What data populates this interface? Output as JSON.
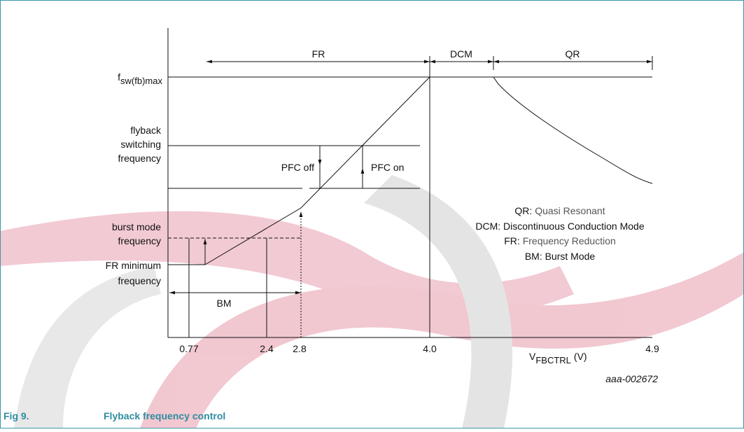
{
  "regions": [
    "FR",
    "DCM",
    "QR"
  ],
  "y_labels": {
    "fmax": {
      "main": "f",
      "sub": "sw(fb)max"
    },
    "switching": [
      "flyback",
      "switching",
      "frequency"
    ],
    "burst": [
      "burst mode",
      "frequency"
    ],
    "frmin": [
      "FR minimum",
      "frequency"
    ]
  },
  "pfc": {
    "off": "PFC off",
    "on": "PFC on"
  },
  "bm": "BM",
  "legend": [
    {
      "key": "QR:",
      "text": "Quasi Resonant"
    },
    {
      "key": "DCM:",
      "text": "Discontinuous Conduction Mode"
    },
    {
      "key": "FR:",
      "text": "Frequency Reduction"
    },
    {
      "key": "BM:",
      "text": "Burst Mode"
    }
  ],
  "x_labels": [
    "0.77",
    "2.4",
    "2.8",
    "4.0",
    "4.9"
  ],
  "x_axis": {
    "main": "V",
    "sub": "FBCTRL",
    "unit": "(V)"
  },
  "code": "aaa-002672",
  "caption": {
    "number": "Fig 9.",
    "title": "Flyback frequency control"
  }
}
